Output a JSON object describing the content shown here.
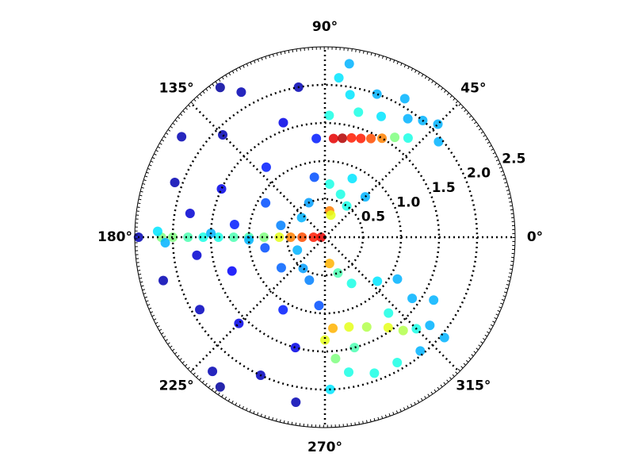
{
  "chart_data": {
    "type": "polar-scatter",
    "colormap": "jet",
    "grid": true,
    "rlim": [
      0,
      2.5
    ],
    "rticks": [
      0.5,
      {
        "value": 1,
        "label": "1.0"
      },
      1.5,
      {
        "value": 2,
        "label": "2.0"
      },
      2.5
    ],
    "thetaticks": [
      {
        "value": 0,
        "label": "0°"
      },
      {
        "value": 45,
        "label": "45°"
      },
      {
        "value": 90,
        "label": "90°"
      },
      {
        "value": 135,
        "label": "135°"
      },
      {
        "value": 180,
        "label": "180°"
      },
      {
        "value": 225,
        "label": "225°"
      },
      {
        "value": 270,
        "label": "270°"
      },
      {
        "value": 315,
        "label": "315°"
      }
    ],
    "theta": [
      100,
      110,
      120,
      130,
      135,
      145,
      150,
      155,
      160,
      165,
      170,
      172,
      188,
      190,
      195,
      200,
      210,
      215,
      225,
      230,
      240,
      245,
      255,
      260,
      265,
      100,
      115,
      140,
      205,
      235,
      250,
      95,
      125,
      235,
      180,
      180,
      180,
      180,
      180,
      180,
      180,
      180,
      180,
      180,
      180,
      180,
      180,
      180,
      178,
      182,
      178,
      182,
      85,
      80,
      75,
      70,
      65,
      60,
      55,
      50,
      85,
      80,
      70,
      60,
      50,
      45,
      40,
      75,
      65,
      55,
      88,
      82,
      85,
      70,
      55,
      80,
      75,
      45,
      65,
      280,
      290,
      300,
      320,
      330,
      325,
      310,
      275,
      285,
      295,
      305,
      310,
      315,
      320,
      330,
      272,
      280,
      290,
      300,
      310,
      320,
      285,
      275,
      270
    ],
    "r": [
      2.0,
      1.6,
      2.2,
      1.2,
      1.9,
      2.3,
      0.9,
      1.5,
      2.1,
      0.6,
      1.8,
      1.2,
      1.7,
      0.8,
      2.2,
      1.3,
      1.9,
      0.7,
      1.6,
      2.3,
      1.1,
      2.0,
      1.5,
      2.2,
      0.9,
      0.8,
      0.5,
      0.4,
      0.4,
      0.5,
      0.6,
      1.3,
      2.4,
      2.4,
      2.45,
      0.05,
      0.15,
      0.3,
      0.45,
      0.6,
      0.8,
      1.0,
      1.2,
      1.4,
      1.6,
      1.8,
      2.0,
      2.15,
      1.5,
      1.0,
      2.2,
      2.1,
      1.3,
      1.32,
      1.35,
      1.38,
      1.43,
      1.5,
      1.6,
      1.7,
      2.1,
      1.9,
      2.0,
      2.1,
      2.0,
      2.1,
      1.95,
      1.7,
      1.75,
      1.9,
      1.6,
      2.3,
      0.7,
      0.6,
      0.5,
      0.35,
      0.3,
      0.75,
      0.85,
      0.35,
      0.5,
      0.7,
      0.9,
      1.1,
      1.4,
      1.3,
      1.2,
      1.22,
      1.3,
      1.45,
      1.6,
      1.7,
      1.8,
      1.65,
      2.0,
      1.8,
      1.9,
      1.9,
      1.95,
      2.05,
      1.5,
      1.6,
      1.35
    ],
    "density": [
      0.05,
      0.1,
      0.05,
      0.15,
      0.05,
      0.05,
      0.2,
      0.1,
      0.05,
      0.25,
      0.08,
      0.15,
      0.08,
      0.2,
      0.05,
      0.12,
      0.06,
      0.22,
      0.1,
      0.05,
      0.15,
      0.06,
      0.1,
      0.05,
      0.2,
      0.2,
      0.28,
      0.3,
      0.3,
      0.28,
      0.25,
      0.15,
      0.03,
      0.03,
      0.05,
      0.9,
      0.85,
      0.8,
      0.75,
      0.6,
      0.5,
      0.45,
      0.45,
      0.4,
      0.4,
      0.45,
      0.5,
      0.5,
      0.3,
      0.3,
      0.35,
      0.3,
      0.9,
      0.95,
      0.85,
      0.85,
      0.8,
      0.75,
      0.5,
      0.4,
      0.35,
      0.35,
      0.3,
      0.3,
      0.3,
      0.3,
      0.3,
      0.4,
      0.35,
      0.3,
      0.4,
      0.3,
      0.4,
      0.4,
      0.4,
      0.75,
      0.6,
      0.3,
      0.35,
      0.7,
      0.45,
      0.4,
      0.35,
      0.3,
      0.3,
      0.4,
      0.7,
      0.6,
      0.55,
      0.6,
      0.55,
      0.4,
      0.3,
      0.3,
      0.35,
      0.4,
      0.4,
      0.4,
      0.3,
      0.3,
      0.45,
      0.5,
      0.6
    ]
  }
}
